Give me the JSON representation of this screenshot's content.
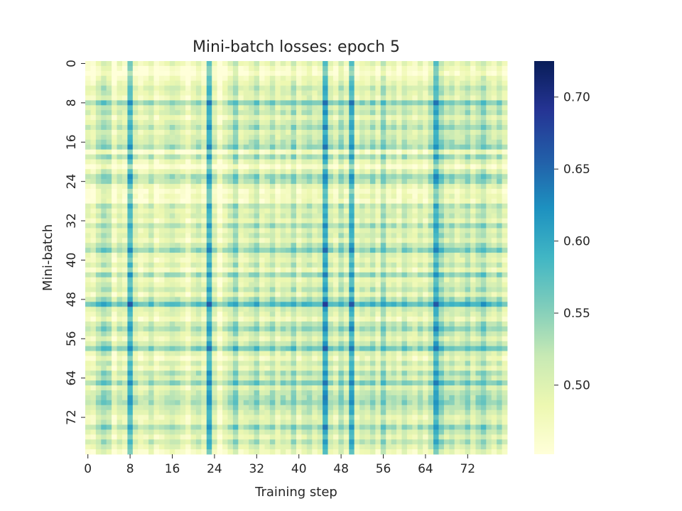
{
  "chart_data": {
    "type": "heatmap",
    "title": "Mini-batch losses: epoch 5",
    "xlabel": "Training step",
    "ylabel": "Mini-batch",
    "n_cols": 80,
    "n_rows": 80,
    "x_ticks": [
      "0",
      "8",
      "16",
      "24",
      "32",
      "40",
      "48",
      "56",
      "64",
      "72"
    ],
    "y_ticks": [
      "0",
      "8",
      "16",
      "24",
      "32",
      "40",
      "48",
      "56",
      "64",
      "72"
    ],
    "colormap": "YlGnBu",
    "colormap_stops": [
      "#ffffd9",
      "#edf8b1",
      "#c7e9b4",
      "#7fcdbb",
      "#41b6c4",
      "#1d91c0",
      "#225ea8",
      "#253494",
      "#081d58"
    ],
    "value_range": [
      0.452,
      0.725
    ],
    "colorbar_ticks": [
      "0.50",
      "0.55",
      "0.60",
      "0.65",
      "0.70"
    ],
    "column_effects": [
      0.0,
      -0.01,
      0.02,
      0.04,
      0.03,
      -0.02,
      0.01,
      0.0,
      0.09,
      0.01,
      -0.01,
      0.0,
      0.02,
      -0.01,
      0.0,
      0.01,
      0.02,
      0.01,
      0.0,
      -0.02,
      0.01,
      0.02,
      0.0,
      0.1,
      0.01,
      -0.03,
      0.0,
      0.02,
      0.05,
      0.0,
      0.01,
      0.02,
      0.04,
      0.0,
      0.01,
      0.03,
      0.0,
      0.02,
      0.01,
      0.04,
      0.0,
      0.02,
      0.03,
      0.01,
      0.02,
      0.11,
      0.02,
      0.0,
      0.04,
      0.01,
      0.1,
      0.0,
      0.02,
      0.01,
      0.03,
      0.0,
      0.05,
      0.01,
      0.02,
      0.0,
      0.03,
      0.01,
      0.0,
      0.02,
      0.0,
      0.03,
      0.1,
      0.05,
      0.02,
      0.03,
      0.01,
      0.02,
      0.04,
      0.01,
      0.03,
      0.05,
      0.02,
      0.01,
      0.03,
      0.0
    ],
    "row_effects": [
      0.0,
      -0.02,
      -0.03,
      -0.01,
      0.0,
      0.02,
      0.01,
      0.0,
      0.06,
      0.02,
      0.03,
      0.0,
      0.02,
      0.04,
      0.01,
      0.02,
      0.03,
      0.05,
      -0.02,
      0.04,
      0.0,
      -0.03,
      0.01,
      0.05,
      0.04,
      0.0,
      -0.02,
      -0.01,
      -0.02,
      0.03,
      0.01,
      0.02,
      0.0,
      0.04,
      0.01,
      0.02,
      0.0,
      0.03,
      0.06,
      0.01,
      0.0,
      0.02,
      -0.01,
      0.05,
      0.0,
      0.01,
      0.03,
      0.0,
      0.04,
      0.09,
      0.02,
      0.01,
      -0.01,
      0.03,
      0.05,
      0.02,
      0.0,
      0.03,
      0.07,
      0.01,
      -0.01,
      0.02,
      0.0,
      0.04,
      0.02,
      0.06,
      0.01,
      0.03,
      0.04,
      0.05,
      0.03,
      0.02,
      0.0,
      0.01,
      0.05,
      0.02,
      0.0,
      0.03,
      0.01,
      -0.01
    ],
    "base_value": 0.475
  }
}
